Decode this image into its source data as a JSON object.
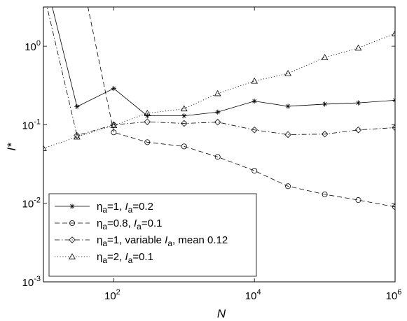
{
  "chart_data": {
    "type": "line",
    "title": "",
    "xlabel": "N",
    "ylabel": "I*",
    "xscale": "log",
    "yscale": "log",
    "xlim": [
      10,
      1000000
    ],
    "ylim": [
      0.001,
      3.16
    ],
    "x_ticks": [
      {
        "value": 100,
        "base": "10",
        "exp": "2"
      },
      {
        "value": 10000,
        "base": "10",
        "exp": "4"
      },
      {
        "value": 1000000,
        "base": "10",
        "exp": "6"
      }
    ],
    "y_ticks": [
      {
        "value": 0.001,
        "base": "10",
        "exp": "-3"
      },
      {
        "value": 0.01,
        "base": "10",
        "exp": "-2"
      },
      {
        "value": 0.1,
        "base": "10",
        "exp": "-1"
      },
      {
        "value": 1,
        "base": "10",
        "exp": "0"
      }
    ],
    "grid": false,
    "legend_position": "bottom-left",
    "series": [
      {
        "legend": [
          {
            "text": "η",
            "sub": false
          },
          {
            "text": "a",
            "sub": true
          },
          {
            "text": "=1,  ",
            "sub": false
          },
          {
            "text": "I",
            "sub": false,
            "italic": true
          },
          {
            "text": "a",
            "sub": true
          },
          {
            "text": "=0.2",
            "sub": false
          }
        ],
        "marker": "star",
        "dash": "solid",
        "x": [
          10,
          30,
          100,
          300,
          1000,
          3000,
          10000,
          30000,
          100000,
          300000,
          1000000
        ],
        "y": [
          9.0,
          0.17,
          0.29,
          0.13,
          0.13,
          0.145,
          0.2,
          0.172,
          0.183,
          0.19,
          0.205
        ]
      },
      {
        "legend": [
          {
            "text": "η",
            "sub": false
          },
          {
            "text": "a",
            "sub": true
          },
          {
            "text": "=0.8,  ",
            "sub": false
          },
          {
            "text": "I",
            "sub": false,
            "italic": true
          },
          {
            "text": "a",
            "sub": true
          },
          {
            "text": "=0.1",
            "sub": false
          }
        ],
        "marker": "circle",
        "dash": "dashed",
        "x": [
          30,
          100,
          300,
          1000,
          3000,
          10000,
          30000,
          100000,
          300000,
          1000000
        ],
        "y": [
          15.0,
          0.08,
          0.06,
          0.053,
          0.039,
          0.026,
          0.0165,
          0.013,
          0.011,
          0.009
        ]
      },
      {
        "legend": [
          {
            "text": "η",
            "sub": false
          },
          {
            "text": "a",
            "sub": true
          },
          {
            "text": "=1, variable  ",
            "sub": false
          },
          {
            "text": "I",
            "sub": false,
            "italic": true
          },
          {
            "text": "a",
            "sub": true
          },
          {
            "text": ", mean 0.12",
            "sub": false
          }
        ],
        "marker": "diamond",
        "dash": "dashdot",
        "x": [
          10,
          30,
          100,
          300,
          1000,
          3000,
          10000,
          30000,
          100000,
          300000,
          1000000
        ],
        "y": [
          5.0,
          0.073,
          0.1,
          0.109,
          0.104,
          0.108,
          0.086,
          0.075,
          0.076,
          0.086,
          0.092
        ]
      },
      {
        "legend": [
          {
            "text": "η",
            "sub": false
          },
          {
            "text": "a",
            "sub": true
          },
          {
            "text": "=2,  ",
            "sub": false
          },
          {
            "text": "I",
            "sub": false,
            "italic": true
          },
          {
            "text": "a",
            "sub": true
          },
          {
            "text": "=0.1",
            "sub": false
          }
        ],
        "marker": "triangle",
        "dash": "dotted",
        "x": [
          10,
          30,
          100,
          300,
          1000,
          3000,
          10000,
          30000,
          100000,
          300000,
          1000000
        ],
        "y": [
          0.05,
          0.07,
          0.098,
          0.14,
          0.16,
          0.25,
          0.36,
          0.45,
          0.72,
          0.95,
          1.45
        ]
      }
    ]
  }
}
